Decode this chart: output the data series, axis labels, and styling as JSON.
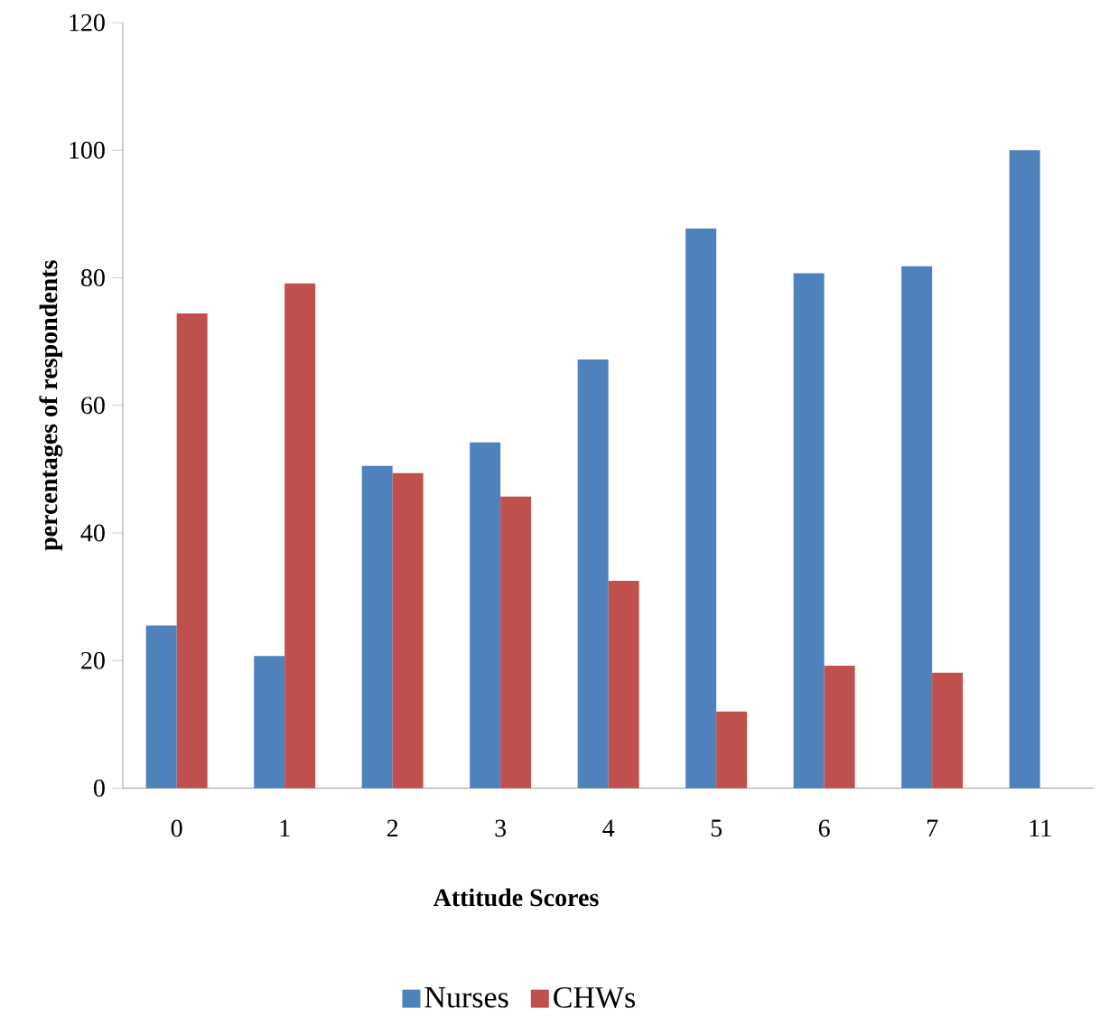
{
  "chart_data": {
    "type": "bar",
    "xlabel": "Attitude  Scores",
    "ylabel": "percentages  of  respondents",
    "categories": [
      "0",
      "1",
      "2",
      "3",
      "4",
      "5",
      "6",
      "7",
      "11"
    ],
    "series": [
      {
        "name": "Nurses",
        "color": "#4f81bd",
        "values": [
          25.5,
          20.7,
          50.5,
          54.2,
          67.2,
          87.7,
          80.7,
          81.8,
          100
        ]
      },
      {
        "name": "CHWs",
        "color": "#c0504d",
        "values": [
          74.4,
          79.1,
          49.4,
          45.7,
          32.5,
          12.0,
          19.2,
          18.1,
          0
        ]
      }
    ],
    "ylim": [
      0,
      120
    ],
    "yticks": [
      0,
      20,
      40,
      60,
      80,
      100,
      120
    ],
    "legend": "bottom"
  }
}
